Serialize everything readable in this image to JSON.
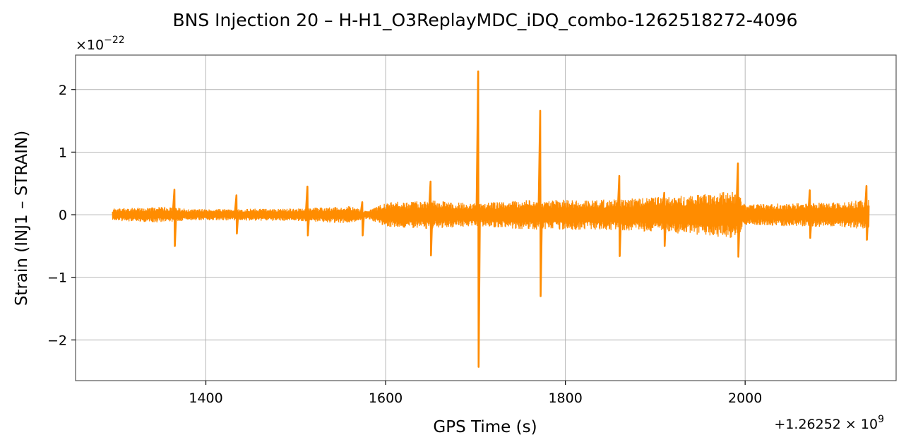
{
  "chart_data": {
    "type": "line",
    "title": "BNS Injection 20 – H-H1_O3ReplayMDC_iDQ_combo-1262518272-4096",
    "xlabel": "GPS Time (s)",
    "ylabel": "Strain (INJ1 – STRAIN)",
    "x_offset_label": "+1.26252 × 10",
    "x_offset_exp": "9",
    "y_scale_label": "×10",
    "y_scale_exp": "−22",
    "x_offset": 1262520000,
    "y_scale": 1e-22,
    "xlim": [
      1255,
      2168
    ],
    "ylim": [
      -2.65,
      2.55
    ],
    "x_ticks": [
      {
        "value": 1400,
        "label": "1400"
      },
      {
        "value": 1600,
        "label": "1600"
      },
      {
        "value": 1800,
        "label": "1800"
      },
      {
        "value": 2000,
        "label": "2000"
      }
    ],
    "y_ticks": [
      {
        "value": 2,
        "label": "2"
      },
      {
        "value": 1,
        "label": "1"
      },
      {
        "value": 0,
        "label": "0"
      },
      {
        "value": -1,
        "label": "−1"
      },
      {
        "value": -2,
        "label": "−2"
      }
    ],
    "grid": true,
    "series": [
      {
        "color": "#ff8c00",
        "x_range": [
          1296,
          2138
        ],
        "background_band": [
          [
            1296,
            0.1
          ],
          [
            1360,
            0.13
          ],
          [
            1380,
            0.09
          ],
          [
            1500,
            0.1
          ],
          [
            1560,
            0.14
          ],
          [
            1580,
            0.06
          ],
          [
            1600,
            0.2
          ],
          [
            1650,
            0.23
          ],
          [
            1700,
            0.18
          ],
          [
            1760,
            0.24
          ],
          [
            1840,
            0.24
          ],
          [
            1900,
            0.28
          ],
          [
            1960,
            0.34
          ],
          [
            1990,
            0.38
          ],
          [
            2000,
            0.17
          ],
          [
            2100,
            0.2
          ],
          [
            2138,
            0.24
          ]
        ],
        "spikes": [
          {
            "x": 1365,
            "max": 0.4,
            "min": -0.5
          },
          {
            "x": 1434,
            "max": 0.31,
            "min": -0.3
          },
          {
            "x": 1513,
            "max": 0.45,
            "min": -0.33
          },
          {
            "x": 1574,
            "max": 0.2,
            "min": -0.33
          },
          {
            "x": 1650,
            "max": 0.53,
            "min": -0.65
          },
          {
            "x": 1703,
            "max": 2.29,
            "min": -2.43
          },
          {
            "x": 1772,
            "max": 1.66,
            "min": -1.3
          },
          {
            "x": 1860,
            "max": 0.62,
            "min": -0.66
          },
          {
            "x": 1910,
            "max": 0.35,
            "min": -0.5
          },
          {
            "x": 1992,
            "max": 0.82,
            "min": -0.67
          },
          {
            "x": 2072,
            "max": 0.39,
            "min": -0.37
          },
          {
            "x": 2135,
            "max": 0.46,
            "min": -0.4
          }
        ]
      }
    ]
  }
}
